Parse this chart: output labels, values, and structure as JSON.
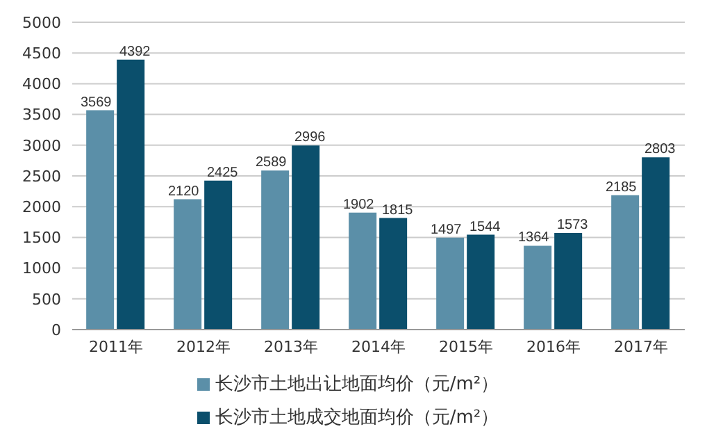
{
  "chart_data": {
    "type": "bar",
    "categories": [
      "2011年",
      "2012年",
      "2013年",
      "2014年",
      "2015年",
      "2016年",
      "2017年"
    ],
    "series": [
      {
        "name": "长沙市土地出让地面均价（元/m²）",
        "color": "#5b8fa8",
        "values": [
          3569,
          2120,
          2589,
          1902,
          1497,
          1364,
          2185
        ]
      },
      {
        "name": "长沙市土地成交地面均价（元/m²）",
        "color": "#0b4f6c",
        "values": [
          4392,
          2425,
          2996,
          1815,
          1544,
          1573,
          2803
        ]
      }
    ],
    "ylim": [
      0,
      5000
    ],
    "yticks": [
      0,
      500,
      1000,
      1500,
      2000,
      2500,
      3000,
      3500,
      4000,
      4500,
      5000
    ],
    "grid": "y",
    "legend": "bottom",
    "data_labels": true
  }
}
